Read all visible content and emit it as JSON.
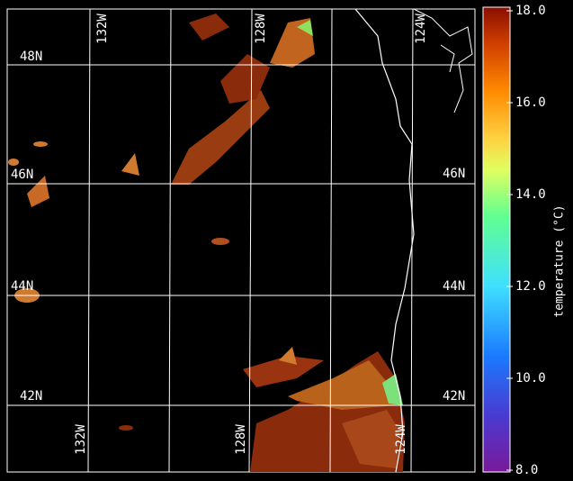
{
  "map": {
    "lat_labels_left": [
      "48N",
      "46N",
      "44N",
      "42N"
    ],
    "lat_labels_right": [
      "46N",
      "44N",
      "42N"
    ],
    "lon_labels_top": [
      "132W",
      "128W",
      "124W"
    ],
    "lon_labels_bottom": [
      "132W",
      "128W",
      "124W"
    ]
  },
  "colorbar": {
    "label": "temperature (°C)",
    "lim": [
      8,
      18
    ],
    "ticks": [
      {
        "value": 8,
        "label": "8.0"
      },
      {
        "value": 10,
        "label": "10.0"
      },
      {
        "value": 12,
        "label": "12.0"
      },
      {
        "value": 14,
        "label": "14.0"
      },
      {
        "value": 16,
        "label": "16.0"
      },
      {
        "value": 18,
        "label": "18.0"
      }
    ]
  }
}
